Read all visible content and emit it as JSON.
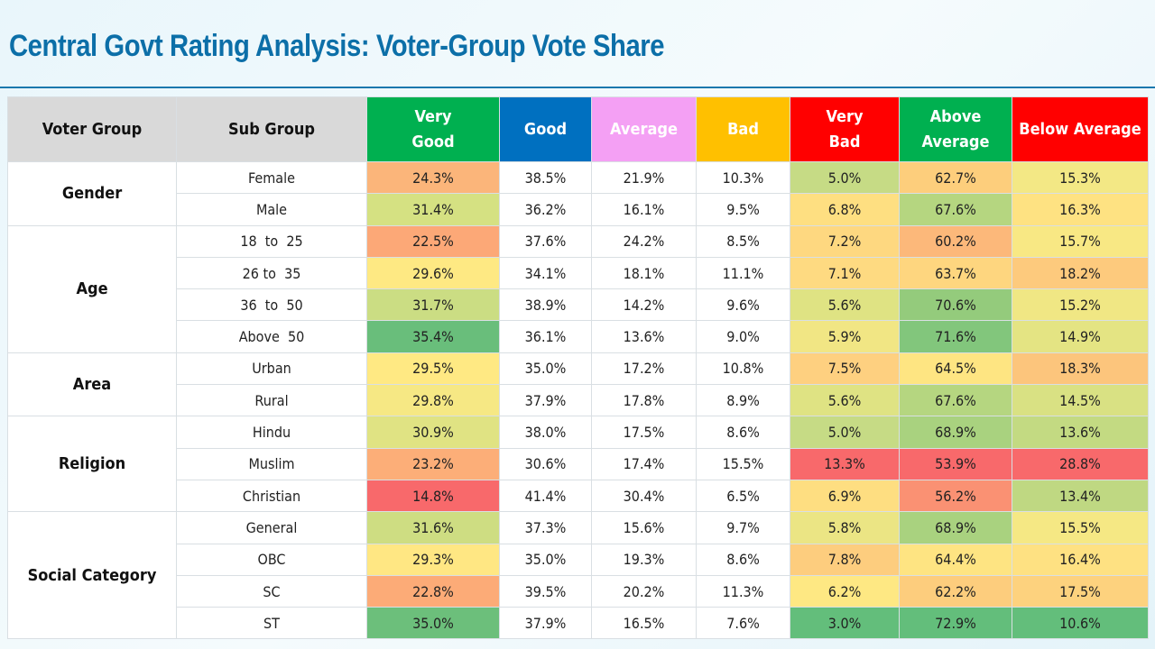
{
  "title": "Central Govt Rating Analysis: Voter-Group Vote Share",
  "table": {
    "headers": [
      {
        "label": "Voter  Group",
        "bg": "#d9d9d9",
        "fg": "#111111"
      },
      {
        "label": "Sub Group",
        "bg": "#d9d9d9",
        "fg": "#111111"
      },
      {
        "label": "Very\nGood",
        "bg": "#00b050",
        "fg": "#ffffff"
      },
      {
        "label": "Good",
        "bg": "#0070c0",
        "fg": "#ffffff"
      },
      {
        "label": "Average",
        "bg": "#f4a0f4",
        "fg": "#ffffff"
      },
      {
        "label": "Bad",
        "bg": "#ffc000",
        "fg": "#ffffff"
      },
      {
        "label": "Very\nBad",
        "bg": "#ff0000",
        "fg": "#ffffff"
      },
      {
        "label": "Above Average",
        "bg": "#00b050",
        "fg": "#ffffff"
      },
      {
        "label": "Below Average",
        "bg": "#ff0000",
        "fg": "#ffffff"
      }
    ],
    "heatmap_columns": [
      2,
      6,
      7,
      8
    ],
    "groups": [
      {
        "name": "Gender",
        "rows": [
          {
            "sub": "Female",
            "values": [
              "24.3%",
              "38.5%",
              "21.9%",
              "10.3%",
              "5.0%",
              "62.7%",
              "15.3%"
            ],
            "colors": [
              "#fbb57a",
              "",
              "",
              "",
              "#c6db85",
              "#fdce7c",
              "#f3e885"
            ]
          },
          {
            "sub": "Male",
            "values": [
              "31.4%",
              "36.2%",
              "16.1%",
              "9.5%",
              "6.8%",
              "67.6%",
              "16.3%"
            ],
            "colors": [
              "#d5e182",
              "",
              "",
              "",
              "#fedf81",
              "#b5d680",
              "#fee282"
            ]
          }
        ]
      },
      {
        "name": "Age",
        "rows": [
          {
            "sub": "18  to  25",
            "values": [
              "22.5%",
              "37.6%",
              "24.2%",
              "8.5%",
              "7.2%",
              "60.2%",
              "15.7%"
            ],
            "colors": [
              "#fca877",
              "",
              "",
              "",
              "#fed880",
              "#fcb87a",
              "#f8e884"
            ]
          },
          {
            "sub": "26 to  35",
            "values": [
              "29.6%",
              "34.1%",
              "18.1%",
              "11.1%",
              "7.1%",
              "63.7%",
              "18.2%"
            ],
            "colors": [
              "#fee983",
              "",
              "",
              "",
              "#feda81",
              "#fed67f",
              "#fdca7d"
            ]
          },
          {
            "sub": "36  to  50",
            "values": [
              "31.7%",
              "38.9%",
              "14.2%",
              "9.6%",
              "5.6%",
              "70.6%",
              "15.2%"
            ],
            "colors": [
              "#cbdd83",
              "",
              "",
              "",
              "#dfe383",
              "#94cb7c",
              "#f0e784"
            ]
          },
          {
            "sub": "Above  50",
            "values": [
              "35.4%",
              "36.1%",
              "13.6%",
              "9.0%",
              "5.9%",
              "71.6%",
              "14.9%"
            ],
            "colors": [
              "#69be7b",
              "",
              "",
              "",
              "#f1e684",
              "#82c67c",
              "#e4e483"
            ]
          }
        ]
      },
      {
        "name": "Area",
        "rows": [
          {
            "sub": "Urban",
            "values": [
              "29.5%",
              "35.0%",
              "17.2%",
              "10.8%",
              "7.5%",
              "64.5%",
              "18.3%"
            ],
            "colors": [
              "#ffe983",
              "",
              "",
              "",
              "#fed080",
              "#fee582",
              "#fcc57c"
            ]
          },
          {
            "sub": "Rural",
            "values": [
              "29.8%",
              "37.9%",
              "17.8%",
              "8.9%",
              "5.6%",
              "67.6%",
              "14.5%"
            ],
            "colors": [
              "#f6e884",
              "",
              "",
              "",
              "#dfe383",
              "#b5d680",
              "#d9e183"
            ]
          }
        ]
      },
      {
        "name": "Religion",
        "rows": [
          {
            "sub": "Hindu",
            "values": [
              "30.9%",
              "38.0%",
              "17.5%",
              "8.6%",
              "5.0%",
              "68.9%",
              "13.6%"
            ],
            "colors": [
              "#e0e383",
              "",
              "",
              "",
              "#c6db85",
              "#a9d27f",
              "#c3da82"
            ]
          },
          {
            "sub": "Muslim",
            "values": [
              "23.2%",
              "30.6%",
              "17.4%",
              "15.5%",
              "13.3%",
              "53.9%",
              "28.8%"
            ],
            "colors": [
              "#fcae78",
              "",
              "",
              "",
              "#f8696b",
              "#f8696b",
              "#f8696b"
            ]
          },
          {
            "sub": "Christian",
            "values": [
              "14.8%",
              "41.4%",
              "30.4%",
              "6.5%",
              "6.9%",
              "56.2%",
              "13.4%"
            ],
            "colors": [
              "#f8696b",
              "",
              "",
              "",
              "#fede81",
              "#fa9173",
              "#bfd882"
            ]
          }
        ]
      },
      {
        "name": "Social Category",
        "rows": [
          {
            "sub": "General",
            "values": [
              "31.6%",
              "37.3%",
              "15.6%",
              "9.7%",
              "5.8%",
              "68.9%",
              "15.5%"
            ],
            "colors": [
              "#cedd82",
              "",
              "",
              "",
              "#ebe584",
              "#a9d27f",
              "#f5e884"
            ]
          },
          {
            "sub": "OBC",
            "values": [
              "29.3%",
              "35.0%",
              "19.3%",
              "8.6%",
              "7.8%",
              "64.4%",
              "16.4%"
            ],
            "colors": [
              "#ffe783",
              "",
              "",
              "",
              "#fdcd7e",
              "#fee482",
              "#fee182"
            ]
          },
          {
            "sub": "SC",
            "values": [
              "22.8%",
              "39.5%",
              "20.2%",
              "11.3%",
              "6.2%",
              "62.2%",
              "17.5%"
            ],
            "colors": [
              "#fcab77",
              "",
              "",
              "",
              "#fee883",
              "#fdcd7d",
              "#fdd27e"
            ]
          },
          {
            "sub": "ST",
            "values": [
              "35.0%",
              "37.9%",
              "16.5%",
              "7.6%",
              "3.0%",
              "72.9%",
              "10.6%"
            ],
            "colors": [
              "#6cbf7b",
              "",
              "",
              "",
              "#63be7b",
              "#63be7b",
              "#63be7b"
            ]
          }
        ]
      }
    ]
  }
}
